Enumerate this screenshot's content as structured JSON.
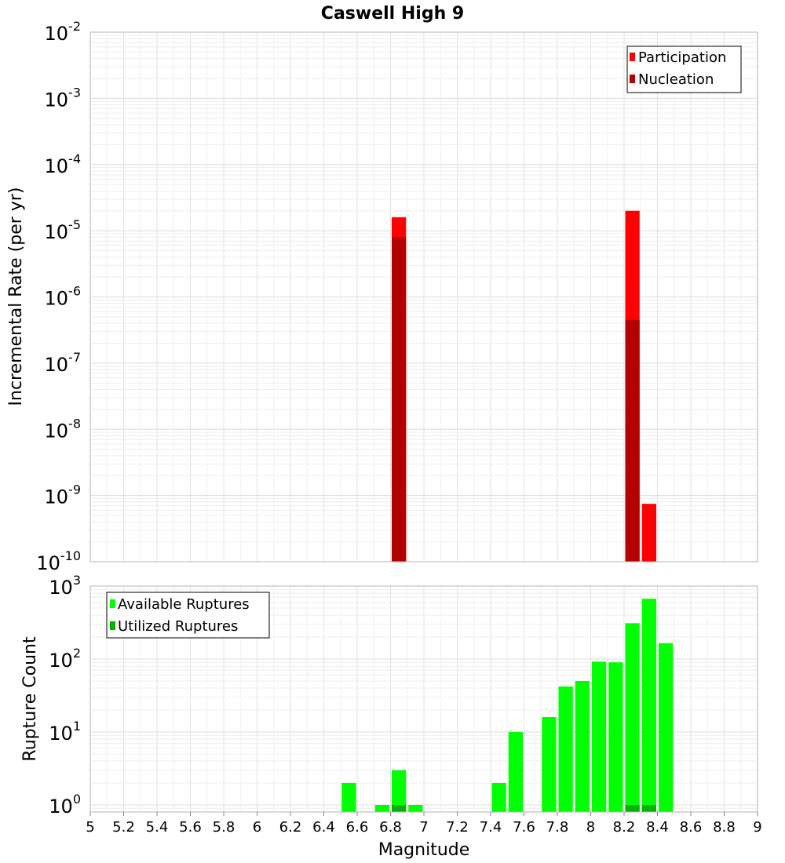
{
  "title": "Caswell High 9",
  "xlabel": "Magnitude",
  "colors": {
    "participation": "#ff0000",
    "nucleation": "#b30000",
    "available": "#00ff00",
    "utilized": "#00b300",
    "grid": "#e6e6e6",
    "frame": "#b4b4b4"
  },
  "chart_data": [
    {
      "type": "bar",
      "title": "Caswell High 9",
      "xlabel": "Magnitude",
      "ylabel": "Incremental Rate (per yr)",
      "xlim": [
        5,
        9
      ],
      "ylim": [
        1e-10,
        0.01
      ],
      "yscale": "log",
      "y_tick_exponents": [
        "-10",
        "-9",
        "-8",
        "-7",
        "-6",
        "-5",
        "-4",
        "-3",
        "-2"
      ],
      "bin_width": 0.1,
      "legend": "top-right",
      "grid": true,
      "series": [
        {
          "name": "Participation",
          "x": [
            6.85,
            8.25,
            8.35
          ],
          "values": [
            1.6e-05,
            2e-05,
            7.5e-10
          ]
        },
        {
          "name": "Nucleation",
          "x": [
            6.85,
            8.25
          ],
          "values": [
            8e-06,
            4.5e-07
          ]
        }
      ]
    },
    {
      "type": "bar",
      "xlabel": "Magnitude",
      "ylabel": "Rupture Count",
      "xlim": [
        5,
        9
      ],
      "ylim": [
        0.8,
        1000
      ],
      "yscale": "log",
      "y_tick_exponents": [
        "0",
        "1",
        "2",
        "3"
      ],
      "x_ticks": [
        "5",
        "5.2",
        "5.4",
        "5.6",
        "5.8",
        "6",
        "6.2",
        "6.4",
        "6.6",
        "6.8",
        "7",
        "7.2",
        "7.4",
        "7.6",
        "7.8",
        "8",
        "8.2",
        "8.4",
        "8.6",
        "8.8",
        "9"
      ],
      "bin_width": 0.1,
      "legend": "top-left",
      "grid": true,
      "series": [
        {
          "name": "Available Ruptures",
          "x": [
            6.55,
            6.75,
            6.85,
            6.95,
            7.45,
            7.55,
            7.75,
            7.85,
            7.95,
            8.05,
            8.15,
            8.25,
            8.35,
            8.45
          ],
          "values": [
            2,
            1,
            3,
            1,
            2,
            10,
            16,
            42,
            50,
            92,
            90,
            310,
            670,
            165
          ]
        },
        {
          "name": "Utilized Ruptures",
          "x": [
            6.85,
            8.25,
            8.35
          ],
          "values": [
            1,
            1,
            1
          ]
        }
      ]
    }
  ]
}
